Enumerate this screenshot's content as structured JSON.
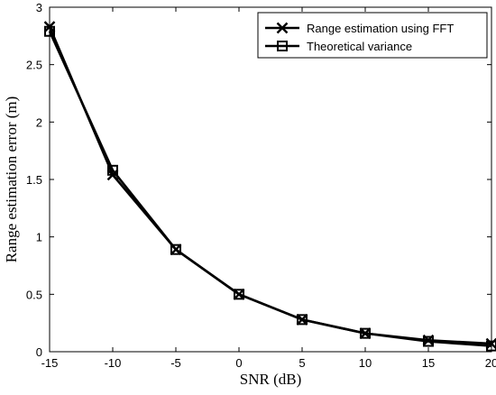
{
  "chart_data": {
    "type": "line",
    "xlabel": "SNR (dB)",
    "ylabel": "Range estimation error (m)",
    "xlim": [
      -15,
      20
    ],
    "ylim": [
      0,
      3
    ],
    "xticks": [
      -15,
      -10,
      -5,
      0,
      5,
      10,
      15,
      20
    ],
    "yticks": [
      0,
      0.5,
      1,
      1.5,
      2,
      2.5,
      3
    ],
    "xtick_labels": [
      "-15",
      "-10",
      "-5",
      "0",
      "5",
      "10",
      "15",
      "20"
    ],
    "ytick_labels": [
      "0",
      "0.5",
      "1",
      "1.5",
      "2",
      "2.5",
      "3"
    ],
    "grid": false,
    "legend_position": "top-right",
    "x": [
      -15,
      -10,
      -5,
      0,
      5,
      10,
      15,
      20
    ],
    "series": [
      {
        "name": "Range estimation using FFT",
        "marker": "x",
        "color": "#000000",
        "values": [
          2.83,
          1.54,
          0.89,
          0.5,
          0.28,
          0.16,
          0.1,
          0.07
        ]
      },
      {
        "name": "Theoretical variance",
        "marker": "square",
        "color": "#000000",
        "values": [
          2.79,
          1.58,
          0.89,
          0.5,
          0.28,
          0.16,
          0.09,
          0.05
        ]
      }
    ]
  }
}
